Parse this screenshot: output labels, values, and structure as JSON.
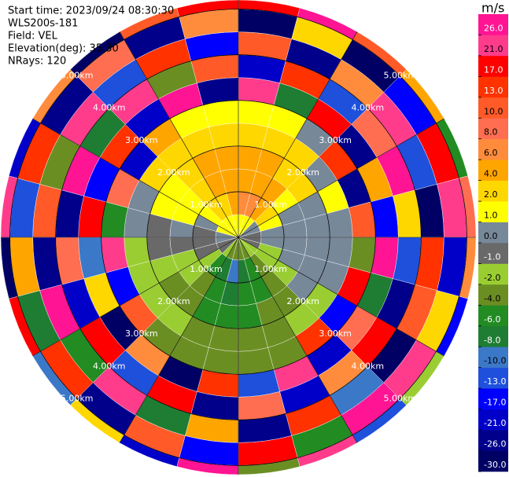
{
  "chart_data": {
    "type": "ppi",
    "info": [
      "Start time: 2023/09/24 08:30:30",
      "WLS200s-181",
      "Field: VEL",
      "Elevation(deg): 35.30",
      "NRays: 120"
    ],
    "unit": "m/s",
    "azimuths": [
      0,
      15,
      30,
      45,
      60,
      75,
      90,
      105,
      120,
      135,
      150,
      165,
      180,
      195,
      210,
      225,
      240,
      255,
      270,
      285,
      300,
      315,
      330,
      345
    ],
    "range_edges_km": [
      0,
      0.5,
      1,
      1.5,
      2,
      2.5,
      3,
      3.5,
      4,
      4.5,
      5,
      5.2
    ],
    "values": [
      [
        1.5,
        7,
        5,
        4.5,
        2.5,
        1.5,
        24,
        -19,
        11,
        -27,
        17
      ],
      [
        1.5,
        6.5,
        5,
        4.5,
        2.5,
        1.5,
        -8,
        15,
        -23,
        3,
        28
      ],
      [
        1.5,
        5,
        5,
        3,
        2.5,
        0.5,
        19,
        -13,
        7,
        -28,
        12
      ],
      [
        0.5,
        2.5,
        1.5,
        2.5,
        0.5,
        14,
        -25,
        9,
        22,
        -15,
        5
      ],
      [
        0.5,
        1.5,
        0.5,
        0.5,
        1.5,
        -22,
        4,
        27,
        -11,
        18,
        -6
      ],
      [
        -0.5,
        0.5,
        0.5,
        0.5,
        0.5,
        11,
        -16,
        2,
        -29,
        23,
        9
      ],
      [
        -0.5,
        0.5,
        0.5,
        0.5,
        0.5,
        -3,
        26,
        -12,
        15,
        -20,
        7
      ],
      [
        -0.5,
        -1.5,
        0.5,
        0.5,
        0.5,
        20,
        -7,
        -24,
        12,
        3,
        -17
      ],
      [
        -1.5,
        -1.5,
        -1.5,
        0.5,
        -1.5,
        -14,
        9,
        18,
        -27,
        25,
        -2
      ],
      [
        -1.5,
        -3,
        -3,
        -3,
        -1.5,
        16,
        -21,
        6,
        -9,
        29,
        -13
      ],
      [
        -3,
        -5,
        -5,
        -3,
        -3,
        -3,
        21,
        -18,
        13,
        -6,
        24
      ],
      [
        -3,
        -7,
        -5,
        -5,
        -3,
        -3,
        -11,
        8,
        -26,
        19,
        -4
      ],
      [
        -3,
        -9,
        -7,
        -5,
        -3,
        -3,
        14,
        -23,
        5,
        -15,
        27
      ],
      [
        -3,
        -7,
        -5,
        -5,
        -3,
        -3,
        -29,
        17,
        -8,
        10,
        -19
      ],
      [
        -1.5,
        -5,
        -3,
        -3,
        -1.5,
        -3,
        7,
        -12,
        23,
        -24,
        2
      ],
      [
        -0.5,
        -1.5,
        -1.5,
        -3,
        -1.5,
        12,
        -27,
        20,
        -5,
        15,
        -10
      ],
      [
        -0.5,
        -0.5,
        -1.5,
        -1.5,
        -1.5,
        -16,
        3,
        -20,
        26,
        -8,
        18
      ],
      [
        0.5,
        -0.5,
        -0.5,
        -0.5,
        -1.5,
        25,
        -10,
        9,
        -22,
        4,
        -28
      ],
      [
        0.5,
        -0.5,
        0.5,
        -0.5,
        0.5,
        -6,
        18,
        -25,
        11,
        -13,
        22
      ],
      [
        1.5,
        0.5,
        1.5,
        1.5,
        0.5,
        9,
        -15,
        28,
        -3,
        16,
        -21
      ],
      [
        1.5,
        1.5,
        1.5,
        1.5,
        2.5,
        -20,
        13,
        -7,
        21,
        -26,
        6
      ],
      [
        1.5,
        3,
        3,
        3,
        2.5,
        4,
        -18,
        24,
        -12,
        8,
        -29
      ],
      [
        1.5,
        3,
        5,
        4.5,
        2.5,
        1.5,
        27,
        -4,
        16,
        -22,
        10
      ],
      [
        1.5,
        5,
        5,
        4.5,
        2.5,
        1.5,
        -26,
        12,
        -17,
        6,
        20
      ]
    ],
    "range_rings": [
      {
        "value": 1,
        "label": "1.00km"
      },
      {
        "value": 2,
        "label": "2.00km"
      },
      {
        "value": 3,
        "label": "3.00km"
      },
      {
        "value": 4,
        "label": "4.00km"
      },
      {
        "value": 5,
        "label": "5.00km"
      }
    ],
    "clim": [
      -30,
      30
    ],
    "cbar_ticks": [
      {
        "value": -30,
        "label": "-30.0"
      },
      {
        "value": -26,
        "label": "-26.0"
      },
      {
        "value": -21,
        "label": "-21.0"
      },
      {
        "value": -17,
        "label": "-17.0"
      },
      {
        "value": -13,
        "label": "-13.0"
      },
      {
        "value": -10,
        "label": "-10.0"
      },
      {
        "value": -8,
        "label": "-8.0"
      },
      {
        "value": -6,
        "label": "-6.0"
      },
      {
        "value": -4,
        "label": "-4.0"
      },
      {
        "value": -2,
        "label": "-2.0"
      },
      {
        "value": -1,
        "label": "-1.0"
      },
      {
        "value": 0,
        "label": "0.0"
      },
      {
        "value": 1,
        "label": "1.0"
      },
      {
        "value": 2,
        "label": "2.0"
      },
      {
        "value": 4,
        "label": "4.0"
      },
      {
        "value": 6,
        "label": "6.0"
      },
      {
        "value": 8,
        "label": "8.0"
      },
      {
        "value": 10,
        "label": "10.0"
      },
      {
        "value": 13,
        "label": "13.0"
      },
      {
        "value": 17,
        "label": "17.0"
      },
      {
        "value": 21,
        "label": "21.0"
      },
      {
        "value": 26,
        "label": "26.0"
      }
    ],
    "colors": [
      "#000064",
      "#00008b",
      "#0000c8",
      "#0000ff",
      "#1e50dc",
      "#3c78c8",
      "#1e7d32",
      "#228b22",
      "#6b8e23",
      "#9acd32",
      "#696969",
      "#778899",
      "#ffff00",
      "#ffd700",
      "#ffa500",
      "#ff8c3c",
      "#ff6e50",
      "#ff5a28",
      "#ff3200",
      "#ff0000",
      "#ff3c8c",
      "#ff1493"
    ]
  }
}
